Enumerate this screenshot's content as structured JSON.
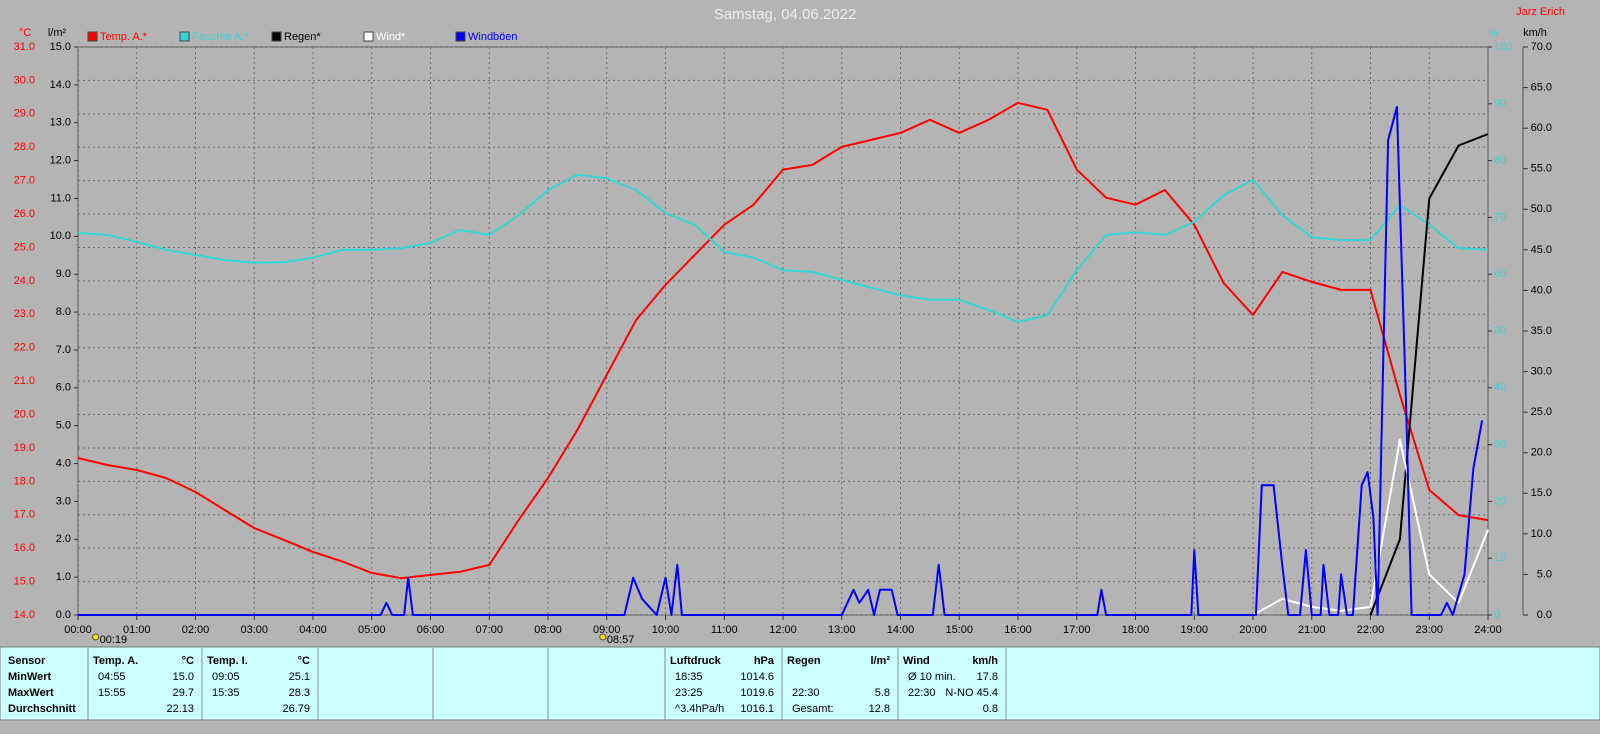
{
  "chart_data": {
    "type": "line",
    "title": "Samstag, 04.06.2022",
    "author": "Jarz Erich",
    "grid": true,
    "xlim": [
      0,
      24
    ],
    "xticks": [
      {
        "value": 0,
        "label": "00:00"
      },
      {
        "value": 1,
        "label": "01:00"
      },
      {
        "value": 2,
        "label": "02:00"
      },
      {
        "value": 3,
        "label": "03:00"
      },
      {
        "value": 4,
        "label": "04:00"
      },
      {
        "value": 5,
        "label": "05:00"
      },
      {
        "value": 6,
        "label": "06:00"
      },
      {
        "value": 7,
        "label": "07:00"
      },
      {
        "value": 8,
        "label": "08:00"
      },
      {
        "value": 9,
        "label": "09:00"
      },
      {
        "value": 10,
        "label": "10:00"
      },
      {
        "value": 11,
        "label": "11:00"
      },
      {
        "value": 12,
        "label": "12:00"
      },
      {
        "value": 13,
        "label": "13:00"
      },
      {
        "value": 14,
        "label": "14:00"
      },
      {
        "value": 15,
        "label": "15:00"
      },
      {
        "value": 16,
        "label": "16:00"
      },
      {
        "value": 17,
        "label": "17:00"
      },
      {
        "value": 18,
        "label": "18:00"
      },
      {
        "value": 19,
        "label": "19:00"
      },
      {
        "value": 20,
        "label": "20:00"
      },
      {
        "value": 21,
        "label": "21:00"
      },
      {
        "value": 22,
        "label": "22:00"
      },
      {
        "value": 23,
        "label": "23:00"
      },
      {
        "value": 24,
        "label": "24:00"
      }
    ],
    "y_unit": "°C",
    "ylim": [
      14,
      31
    ],
    "yticks": [
      {
        "value": 14,
        "label": "14.0"
      },
      {
        "value": 15,
        "label": "15.0"
      },
      {
        "value": 16,
        "label": "16.0"
      },
      {
        "value": 17,
        "label": "17.0"
      },
      {
        "value": 18,
        "label": "18.0"
      },
      {
        "value": 19,
        "label": "19.0"
      },
      {
        "value": 20,
        "label": "20.0"
      },
      {
        "value": 21,
        "label": "21.0"
      },
      {
        "value": 22,
        "label": "22.0"
      },
      {
        "value": 23,
        "label": "23.0"
      },
      {
        "value": 24,
        "label": "24.0"
      },
      {
        "value": 25,
        "label": "25.0"
      },
      {
        "value": 26,
        "label": "26.0"
      },
      {
        "value": 27,
        "label": "27.0"
      },
      {
        "value": 28,
        "label": "28.0"
      },
      {
        "value": 29,
        "label": "29.0"
      },
      {
        "value": 30,
        "label": "30.0"
      },
      {
        "value": 31,
        "label": "31.0"
      }
    ],
    "y2_unit": "l/m²",
    "y2lim": [
      0,
      15
    ],
    "y2ticks": [
      {
        "value": 0,
        "label": "0.0"
      },
      {
        "value": 1,
        "label": "1.0"
      },
      {
        "value": 2,
        "label": "2.0"
      },
      {
        "value": 3,
        "label": "3.0"
      },
      {
        "value": 4,
        "label": "4.0"
      },
      {
        "value": 5,
        "label": "5.0"
      },
      {
        "value": 6,
        "label": "6.0"
      },
      {
        "value": 7,
        "label": "7.0"
      },
      {
        "value": 8,
        "label": "8.0"
      },
      {
        "value": 9,
        "label": "9.0"
      },
      {
        "value": 10,
        "label": "10.0"
      },
      {
        "value": 11,
        "label": "11.0"
      },
      {
        "value": 12,
        "label": "12.0"
      },
      {
        "value": 13,
        "label": "13.0"
      },
      {
        "value": 14,
        "label": "14.0"
      },
      {
        "value": 15,
        "label": "15.0"
      }
    ],
    "y3_unit": "%",
    "y3lim": [
      0,
      100
    ],
    "y3ticks": [
      0,
      10,
      20,
      30,
      40,
      50,
      60,
      70,
      80,
      90,
      100
    ],
    "y4_unit": "km/h",
    "y4lim": [
      0,
      70
    ],
    "y4ticks": [
      {
        "value": 0,
        "label": "0.0"
      },
      {
        "value": 5,
        "label": "5.0"
      },
      {
        "value": 10,
        "label": "10.0"
      },
      {
        "value": 15,
        "label": "15.0"
      },
      {
        "value": 20,
        "label": "20.0"
      },
      {
        "value": 25,
        "label": "25.0"
      },
      {
        "value": 30,
        "label": "30.0"
      },
      {
        "value": 35,
        "label": "35.0"
      },
      {
        "value": 40,
        "label": "40.0"
      },
      {
        "value": 45,
        "label": "45.0"
      },
      {
        "value": 50,
        "label": "50.0"
      },
      {
        "value": 55,
        "label": "55.0"
      },
      {
        "value": 60,
        "label": "60.0"
      },
      {
        "value": 65,
        "label": "65.0"
      },
      {
        "value": 70,
        "label": "70.0"
      }
    ],
    "x": [
      0,
      0.5,
      1,
      1.5,
      2,
      2.5,
      3,
      3.5,
      4,
      4.5,
      5,
      5.5,
      6,
      6.5,
      7,
      7.5,
      8,
      8.5,
      9,
      9.5,
      10,
      10.5,
      11,
      11.5,
      12,
      12.5,
      13,
      13.5,
      14,
      14.5,
      15,
      15.5,
      16,
      16.5,
      17,
      17.5,
      18,
      18.5,
      19,
      19.5,
      20,
      20.5,
      21,
      21.5,
      22,
      22.5,
      23,
      23.5,
      24
    ],
    "series": [
      {
        "name": "Temp. A.*",
        "color": "#ff0000",
        "axis": "y",
        "values": [
          18.7,
          18.49,
          18.34,
          18.1,
          17.68,
          17.14,
          16.6,
          16.25,
          15.89,
          15.6,
          15.26,
          15.1,
          15.2,
          15.29,
          15.5,
          16.84,
          18.1,
          19.54,
          21.19,
          22.83,
          23.88,
          24.78,
          25.68,
          26.28,
          27.33,
          27.47,
          28.01,
          28.22,
          28.43,
          28.82,
          28.43,
          28.82,
          29.33,
          29.12,
          27.33,
          26.49,
          26.28,
          26.72,
          25.68,
          23.94,
          22.98,
          24.27,
          23.97,
          23.73,
          23.73,
          20.59,
          17.74,
          16.99,
          16.84
        ]
      },
      {
        "name": "Feuchte A.*",
        "color": "#33d6d6",
        "axis": "y3",
        "values": [
          67.3,
          66.9,
          65.7,
          64.3,
          63.4,
          62.5,
          62,
          62.1,
          62.9,
          64.3,
          64.3,
          64.6,
          65.5,
          67.8,
          66.9,
          70.4,
          74.8,
          77.5,
          76.9,
          74.8,
          70.8,
          68.7,
          63.9,
          62.9,
          60.7,
          60.4,
          59,
          57.6,
          56.3,
          55.5,
          55.5,
          53.7,
          51.6,
          52.8,
          60.7,
          66.9,
          67.4,
          66.9,
          69.2,
          73.9,
          76.6,
          70.4,
          66.5,
          66,
          66,
          72.2,
          68.7,
          64.6,
          64.3
        ]
      },
      {
        "name": "Regen*",
        "color": "#000000",
        "axis": "y2",
        "values": [
          null,
          null,
          null,
          null,
          null,
          null,
          null,
          null,
          null,
          null,
          null,
          null,
          null,
          null,
          null,
          null,
          null,
          null,
          null,
          null,
          null,
          null,
          null,
          null,
          null,
          null,
          null,
          null,
          null,
          null,
          null,
          null,
          null,
          null,
          null,
          null,
          null,
          null,
          null,
          null,
          null,
          null,
          null,
          null,
          0,
          2.0,
          11.0,
          12.4,
          12.7
        ]
      },
      {
        "name": "Wind*",
        "color": "#ffffff",
        "axis": "y4",
        "values": [
          null,
          null,
          null,
          null,
          null,
          null,
          null,
          null,
          null,
          null,
          null,
          null,
          null,
          null,
          null,
          null,
          null,
          null,
          null,
          null,
          null,
          null,
          null,
          null,
          null,
          null,
          null,
          null,
          null,
          null,
          null,
          null,
          null,
          null,
          null,
          null,
          null,
          null,
          null,
          null,
          0,
          2,
          1,
          0.5,
          1,
          21.6,
          5,
          1.5,
          10.5
        ]
      },
      {
        "name": "Windböen",
        "color": "#0000ff",
        "axis": "y4",
        "x": [
          0,
          5.15,
          5.25,
          5.35,
          5.55,
          5.62,
          5.7,
          9.3,
          9.45,
          9.6,
          9.85,
          10.0,
          10.1,
          10.2,
          10.28,
          13.0,
          13.2,
          13.3,
          13.45,
          13.55,
          13.65,
          13.85,
          13.95,
          14.55,
          14.65,
          14.75,
          17.35,
          17.42,
          17.5,
          18.95,
          19.0,
          19.07,
          20.05,
          20.15,
          20.35,
          20.5,
          20.6,
          20.8,
          20.9,
          21.0,
          21.15,
          21.2,
          21.3,
          21.45,
          21.5,
          21.6,
          21.7,
          21.85,
          21.95,
          22.05,
          22.12,
          22.3,
          22.45,
          22.6,
          22.7,
          23.2,
          23.3,
          23.4,
          23.6,
          23.75,
          23.9
        ],
        "values": [
          0,
          0,
          1.5,
          0,
          0,
          4.6,
          0,
          0,
          4.6,
          2,
          0,
          4.6,
          0,
          6.2,
          0,
          0,
          3.1,
          1.5,
          3.1,
          0,
          3.1,
          3.1,
          0,
          0,
          6.2,
          0,
          0,
          3.1,
          0,
          0,
          8,
          0,
          0,
          16,
          16,
          6,
          0,
          0,
          8,
          0,
          0,
          6.2,
          0,
          0,
          5,
          0,
          0,
          16,
          17.6,
          12,
          0,
          58.5,
          62.6,
          27,
          0,
          0,
          1.5,
          0,
          5,
          18,
          24
        ]
      }
    ],
    "annotations": [
      {
        "x": 0.3167,
        "label": "00:19"
      },
      {
        "x": 8.95,
        "label": "08:57"
      }
    ]
  },
  "stats_table": {
    "row_labels": [
      "Sensor",
      "MinWert",
      "MaxWert",
      "Durchschnitt"
    ],
    "sections": [
      {
        "title": "Temp. A.",
        "unit": "°C",
        "rows": [
          [
            "04:55",
            "15.0"
          ],
          [
            "15:55",
            "29.7"
          ],
          [
            null,
            "22.13"
          ]
        ]
      },
      {
        "title": "Temp. I.",
        "unit": "°C",
        "rows": [
          [
            "09:05",
            "25.1"
          ],
          [
            "15:35",
            "28.3"
          ],
          [
            null,
            "26.79"
          ]
        ]
      },
      {
        "title": "Luftdruck",
        "unit": "hPa",
        "rows": [
          [
            "18:35",
            "1014.6"
          ],
          [
            "23:25",
            "1019.6"
          ],
          [
            "^3.4hPa/h",
            "1016.1"
          ]
        ]
      },
      {
        "title": "Regen",
        "unit": "l/m²",
        "rows": [
          [
            null,
            null
          ],
          [
            "22:30",
            "5.8"
          ],
          [
            "Gesamt:",
            "12.8"
          ]
        ]
      },
      {
        "title": "Wind",
        "unit": "km/h",
        "rows": [
          [
            "Ø 10 min.",
            "17.8"
          ],
          [
            "22:30",
            "N-NO 45.4"
          ],
          [
            null,
            "0.8"
          ]
        ]
      }
    ]
  }
}
